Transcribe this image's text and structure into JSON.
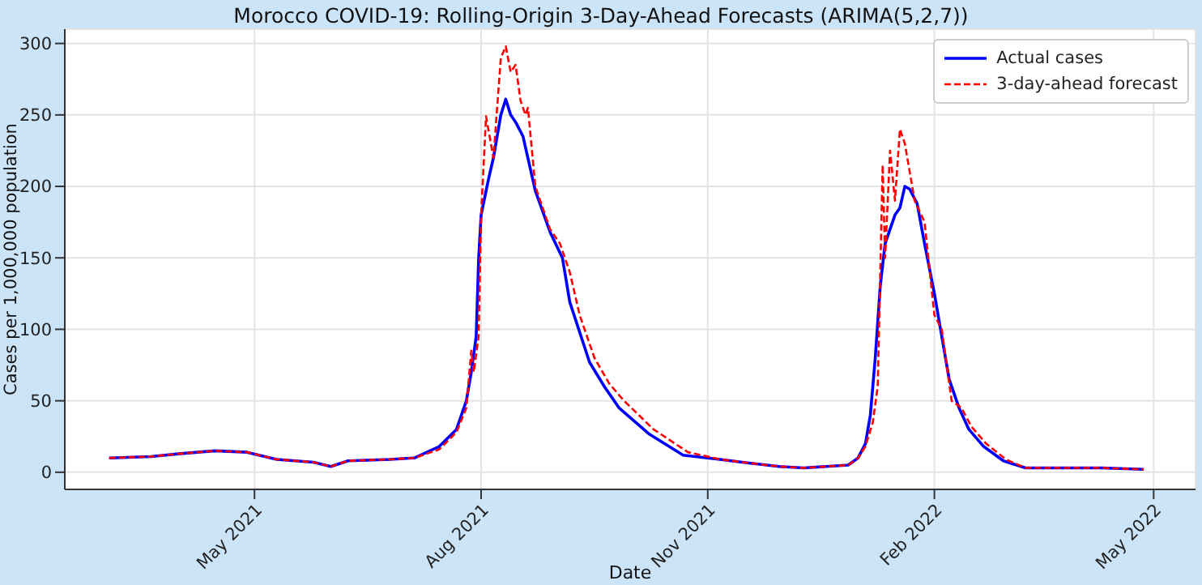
{
  "chart_data": {
    "type": "line",
    "title": "Morocco COVID-19: Rolling-Origin 3-Day-Ahead Forecasts (ARIMA(5,2,7))",
    "xlabel": "Date",
    "ylabel": "Cases per 1,000,000 population",
    "xlim": [
      "2021-02-13",
      "2022-05-18"
    ],
    "xticks": [
      {
        "value": "2021-05-01",
        "label": "May 2021"
      },
      {
        "value": "2021-08-01",
        "label": "Aug 2021"
      },
      {
        "value": "2021-11-01",
        "label": "Nov 2021"
      },
      {
        "value": "2022-02-01",
        "label": "Feb 2022"
      },
      {
        "value": "2022-05-01",
        "label": "May 2022"
      }
    ],
    "ylim": [
      -12,
      310
    ],
    "yticks": [
      0,
      50,
      100,
      150,
      200,
      250,
      300
    ],
    "grid": true,
    "legend": "top right",
    "marker": "none",
    "series": [
      {
        "name": "Actual cases",
        "color": "#0000ff",
        "line_style": "solid",
        "x": [
          "2021-03-03",
          "2021-03-20",
          "2021-04-01",
          "2021-04-15",
          "2021-04-28",
          "2021-05-10",
          "2021-05-25",
          "2021-06-01",
          "2021-06-08",
          "2021-06-25",
          "2021-07-05",
          "2021-07-15",
          "2021-07-22",
          "2021-07-26",
          "2021-07-28",
          "2021-07-30",
          "2021-07-31",
          "2021-08-01",
          "2021-08-04",
          "2021-08-06",
          "2021-08-09",
          "2021-08-11",
          "2021-08-13",
          "2021-08-15",
          "2021-08-18",
          "2021-08-23",
          "2021-08-29",
          "2021-09-03",
          "2021-09-06",
          "2021-09-14",
          "2021-09-20",
          "2021-09-26",
          "2021-10-08",
          "2021-10-22",
          "2021-11-06",
          "2021-11-15",
          "2021-11-30",
          "2021-12-10",
          "2021-12-28",
          "2022-01-01",
          "2022-01-04",
          "2022-01-06",
          "2022-01-08",
          "2022-01-10",
          "2022-01-12",
          "2022-01-14",
          "2022-01-16",
          "2022-01-18",
          "2022-01-20",
          "2022-01-22",
          "2022-01-25",
          "2022-01-28",
          "2022-02-01",
          "2022-02-04",
          "2022-02-07",
          "2022-02-11",
          "2022-02-15",
          "2022-02-21",
          "2022-03-01",
          "2022-03-10",
          "2022-03-25",
          "2022-04-10",
          "2022-04-27"
        ],
        "values": [
          10,
          11,
          13,
          15,
          14,
          9,
          7,
          4,
          8,
          9,
          10,
          18,
          30,
          50,
          70,
          95,
          150,
          180,
          205,
          220,
          250,
          261,
          250,
          245,
          235,
          197,
          168,
          150,
          119,
          77,
          60,
          45,
          27,
          12,
          9,
          7,
          4,
          3,
          5,
          10,
          20,
          40,
          80,
          130,
          160,
          170,
          180,
          185,
          200,
          198,
          188,
          160,
          125,
          95,
          65,
          45,
          30,
          18,
          8,
          3,
          3,
          3,
          2
        ]
      },
      {
        "name": "3-day-ahead forecast",
        "color": "#ff0000",
        "line_style": "dashed",
        "x": [
          "2021-03-03",
          "2021-03-20",
          "2021-04-01",
          "2021-04-15",
          "2021-04-28",
          "2021-05-10",
          "2021-05-25",
          "2021-06-01",
          "2021-06-08",
          "2021-06-25",
          "2021-07-05",
          "2021-07-15",
          "2021-07-22",
          "2021-07-26",
          "2021-07-28",
          "2021-07-29",
          "2021-07-31",
          "2021-08-01",
          "2021-08-03",
          "2021-08-06",
          "2021-08-09",
          "2021-08-11",
          "2021-08-13",
          "2021-08-15",
          "2021-08-17",
          "2021-08-19",
          "2021-08-20",
          "2021-08-23",
          "2021-08-26",
          "2021-08-29",
          "2021-09-02",
          "2021-09-06",
          "2021-09-10",
          "2021-09-16",
          "2021-09-22",
          "2021-09-28",
          "2021-10-10",
          "2021-10-24",
          "2021-11-06",
          "2021-11-15",
          "2021-11-30",
          "2021-12-10",
          "2021-12-28",
          "2022-01-01",
          "2022-01-04",
          "2022-01-07",
          "2022-01-09",
          "2022-01-11",
          "2022-01-12",
          "2022-01-14",
          "2022-01-16",
          "2022-01-18",
          "2022-01-20",
          "2022-01-24",
          "2022-01-28",
          "2022-02-01",
          "2022-02-04",
          "2022-02-08",
          "2022-02-12",
          "2022-02-16",
          "2022-02-22",
          "2022-03-02",
          "2022-03-10",
          "2022-03-25",
          "2022-04-10",
          "2022-04-27"
        ],
        "values": [
          10,
          11,
          13,
          15,
          14,
          9,
          7,
          4,
          8,
          9,
          10,
          16,
          28,
          45,
          85,
          70,
          95,
          180,
          249,
          220,
          290,
          298,
          280,
          285,
          260,
          250,
          255,
          200,
          185,
          170,
          160,
          140,
          110,
          80,
          62,
          50,
          30,
          14,
          9,
          7,
          4,
          3,
          5,
          10,
          18,
          35,
          60,
          215,
          150,
          225,
          190,
          240,
          230,
          190,
          175,
          110,
          100,
          50,
          45,
          32,
          20,
          9,
          3,
          3,
          3,
          2
        ]
      }
    ]
  }
}
